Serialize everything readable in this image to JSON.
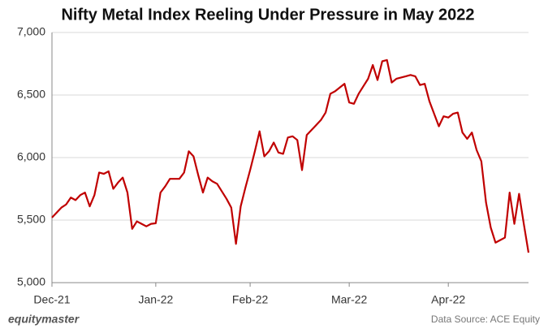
{
  "chart_data": {
    "type": "line",
    "title": "Nifty Metal Index Reeling Under Pressure in May 2022",
    "categories": [
      "Dec-21",
      null,
      null,
      null,
      null,
      null,
      null,
      null,
      null,
      null,
      null,
      null,
      null,
      null,
      null,
      null,
      null,
      null,
      null,
      null,
      null,
      null,
      "Jan-22",
      null,
      null,
      null,
      null,
      null,
      null,
      null,
      null,
      null,
      null,
      null,
      null,
      null,
      null,
      null,
      null,
      null,
      null,
      null,
      "Feb-22",
      null,
      null,
      null,
      null,
      null,
      null,
      null,
      null,
      null,
      null,
      null,
      null,
      null,
      null,
      null,
      null,
      null,
      null,
      null,
      null,
      "Mar-22",
      null,
      null,
      null,
      null,
      null,
      null,
      null,
      null,
      null,
      null,
      null,
      null,
      null,
      null,
      null,
      null,
      null,
      null,
      null,
      null,
      "Apr-22",
      null,
      null,
      null,
      null,
      null,
      null,
      null,
      null,
      null,
      null,
      null,
      null,
      null,
      null,
      null,
      null,
      null
    ],
    "values": [
      5520,
      5560,
      5600,
      5625,
      5680,
      5660,
      5700,
      5720,
      5610,
      5700,
      5880,
      5870,
      5890,
      5750,
      5800,
      5840,
      5720,
      5430,
      5490,
      5470,
      5450,
      5470,
      5475,
      5720,
      5770,
      5830,
      5830,
      5830,
      5880,
      6050,
      6010,
      5860,
      5720,
      5840,
      5810,
      5790,
      5730,
      5670,
      5600,
      5310,
      5610,
      5760,
      5900,
      6050,
      6210,
      6010,
      6050,
      6120,
      6040,
      6030,
      6160,
      6170,
      6140,
      5900,
      6180,
      6220,
      6260,
      6300,
      6360,
      6510,
      6530,
      6560,
      6590,
      6440,
      6430,
      6510,
      6570,
      6630,
      6740,
      6620,
      6770,
      6780,
      6600,
      6630,
      6640,
      6650,
      6660,
      6650,
      6580,
      6590,
      6450,
      6350,
      6250,
      6330,
      6320,
      6350,
      6360,
      6200,
      6150,
      6200,
      6060,
      5970,
      5640,
      5440,
      5320,
      5340,
      5360,
      5720,
      5470,
      5710,
      5470,
      5240
    ],
    "color": "#c00000",
    "ylim": [
      5000,
      7000
    ],
    "yticks": [
      {
        "value": 5000,
        "label": "5,000"
      },
      {
        "value": 5500,
        "label": "5,500"
      },
      {
        "value": 6000,
        "label": "6,000"
      },
      {
        "value": 6500,
        "label": "6,500"
      },
      {
        "value": 7000,
        "label": "7,000"
      }
    ],
    "grid": true,
    "brand": "equitymaster",
    "source": "Data Source: ACE Equity"
  }
}
